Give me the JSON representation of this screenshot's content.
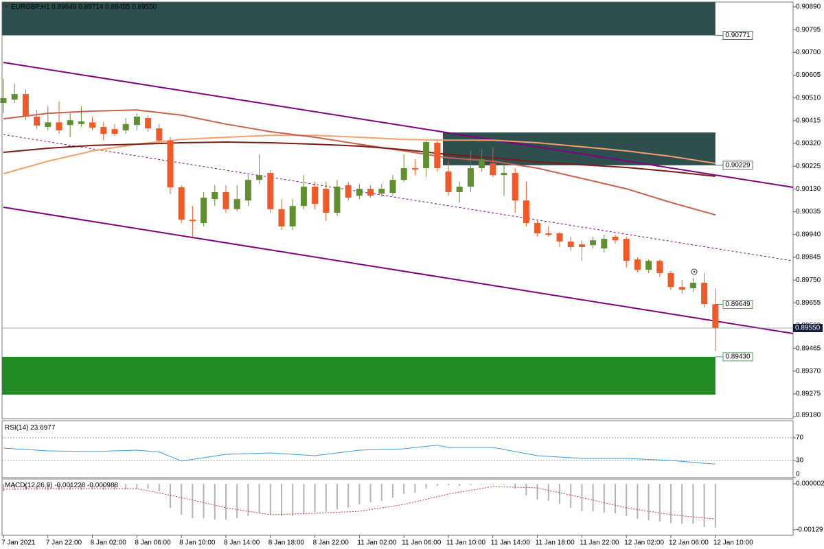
{
  "chart_data": [
    {
      "type": "candlestick",
      "header": {
        "symbol": "EURGBP,H1",
        "quote": "0.89649 0.89714 0.89455 0.89550"
      },
      "categories": [
        "7 Jan 2021",
        null,
        null,
        null,
        "7 Jan 22:00",
        null,
        null,
        null,
        "8 Jan 02:00",
        null,
        null,
        null,
        "8 Jan 06:00",
        null,
        null,
        null,
        "8 Jan 10:00",
        null,
        null,
        null,
        "8 Jan 14:00",
        null,
        null,
        null,
        "8 Jan 18:00",
        null,
        null,
        null,
        "8 Jan 22:00",
        null,
        null,
        null,
        "11 Jan 02:00",
        null,
        null,
        null,
        "11 Jan 06:00",
        null,
        null,
        null,
        "11 Jan 10:00",
        null,
        null,
        null,
        "11 Jan 14:00",
        null,
        null,
        null,
        "11 Jan 18:00",
        null,
        null,
        null,
        "11 Jan 22:00",
        null,
        null,
        null,
        "12 Jan 02:00",
        null,
        null,
        null,
        "12 Jan 06:00",
        null,
        null,
        null,
        "12 Jan 10:00"
      ],
      "open": [
        0.90489,
        0.90503,
        0.90526,
        0.90432,
        0.90389,
        0.90408,
        0.90397,
        0.90401,
        0.90408,
        0.90389,
        0.9038,
        0.90375,
        0.90397,
        0.90426,
        0.90383,
        0.90332,
        0.90137,
        0.90002,
        0.89988,
        0.90088,
        0.90117,
        0.90046,
        0.90082,
        0.90168,
        0.90197,
        0.90046,
        0.89974,
        0.90059,
        0.9014,
        0.90131,
        0.90031,
        0.90146,
        0.90102,
        0.90131,
        0.90111,
        0.90114,
        0.90168,
        0.90217,
        0.90217,
        0.90323,
        0.90203,
        0.90117,
        0.9014,
        0.90217,
        0.90237,
        0.90188,
        0.90197,
        0.90082,
        0.89988,
        0.89945,
        0.89945,
        0.89911,
        0.89899,
        0.89896,
        0.89882,
        0.89931,
        0.89922,
        0.89836,
        0.89793,
        0.8983,
        0.89779,
        0.89721,
        0.89716,
        0.89739,
        0.89649
      ],
      "high": [
        0.90589,
        0.90569,
        0.90546,
        0.9046,
        0.90475,
        0.90495,
        0.90446,
        0.90475,
        0.90432,
        0.90408,
        0.90401,
        0.90426,
        0.90446,
        0.90438,
        0.90401,
        0.90346,
        0.90146,
        0.90059,
        0.90117,
        0.90146,
        0.90146,
        0.90146,
        0.90188,
        0.90274,
        0.90208,
        0.90088,
        0.90088,
        0.90188,
        0.9016,
        0.9016,
        0.90168,
        0.9016,
        0.90151,
        0.90146,
        0.90151,
        0.90188,
        0.90274,
        0.90254,
        0.90332,
        0.90332,
        0.90246,
        0.9016,
        0.90289,
        0.90294,
        0.90303,
        0.90237,
        0.90217,
        0.9016,
        0.90002,
        0.89974,
        0.89951,
        0.89931,
        0.89916,
        0.89931,
        0.89939,
        0.89939,
        0.89931,
        0.89845,
        0.89836,
        0.89836,
        0.89788,
        0.8975,
        0.89759,
        0.89779,
        0.89714
      ],
      "low": [
        0.90446,
        0.90489,
        0.90417,
        0.9038,
        0.90375,
        0.9036,
        0.90346,
        0.90389,
        0.90375,
        0.90332,
        0.90352,
        0.9036,
        0.90375,
        0.90369,
        0.90317,
        0.90108,
        0.89988,
        0.89931,
        0.89974,
        0.90059,
        0.90031,
        0.90037,
        0.90059,
        0.90151,
        0.90031,
        0.89959,
        0.89959,
        0.90046,
        0.90046,
        0.89996,
        0.90017,
        0.90082,
        0.90088,
        0.90094,
        0.90099,
        0.90102,
        0.9016,
        0.90188,
        0.9018,
        0.90203,
        0.90102,
        0.90074,
        0.90117,
        0.90203,
        0.9018,
        0.90102,
        0.90031,
        0.89974,
        0.89931,
        0.89931,
        0.89888,
        0.89873,
        0.8983,
        0.89882,
        0.89865,
        0.89902,
        0.89802,
        0.89782,
        0.89779,
        0.89763,
        0.8971,
        0.89693,
        0.89701,
        0.89636,
        0.89455
      ],
      "close": [
        0.90509,
        0.90526,
        0.90432,
        0.90395,
        0.90408,
        0.90375,
        0.90417,
        0.90412,
        0.90386,
        0.9036,
        0.9036,
        0.90401,
        0.90432,
        0.90383,
        0.90332,
        0.90137,
        0.90002,
        0.89996,
        0.90094,
        0.90117,
        0.90046,
        0.90088,
        0.90168,
        0.90188,
        0.90046,
        0.89974,
        0.90059,
        0.9014,
        0.90068,
        0.90031,
        0.9014,
        0.90094,
        0.90131,
        0.90102,
        0.90131,
        0.90168,
        0.90217,
        0.90211,
        0.90326,
        0.90217,
        0.90117,
        0.9014,
        0.90217,
        0.90254,
        0.90188,
        0.90197,
        0.90082,
        0.89988,
        0.89945,
        0.89939,
        0.89911,
        0.89888,
        0.89888,
        0.89916,
        0.89922,
        0.89916,
        0.8983,
        0.89793,
        0.8983,
        0.89779,
        0.89721,
        0.8971,
        0.89739,
        0.8965,
        0.8955
      ],
      "up_color": "#5f8f2f",
      "down_color": "#f05a28",
      "ylim": [
        0.89172,
        0.9091
      ],
      "yticks": [
        {
          "value": 0.9089,
          "label": "0.90890"
        },
        0.90795,
        {
          "value": 0.907,
          "label": "0.90700"
        },
        0.90605,
        {
          "value": 0.9051,
          "label": "0.90510"
        },
        0.90415,
        {
          "value": 0.9032,
          "label": "0.90320"
        },
        0.90225,
        {
          "value": 0.9013,
          "label": "0.90130"
        },
        0.90035,
        {
          "value": 0.8994,
          "label": "0.89940"
        },
        0.89845,
        {
          "value": 0.8975,
          "label": "0.89750"
        },
        0.89655,
        {
          "value": 0.8956,
          "label": "0.89560"
        },
        0.89465,
        {
          "value": 0.8937,
          "label": "0.89370"
        },
        0.89275,
        {
          "value": 0.8918,
          "label": "0.89180"
        }
      ],
      "zones": [
        {
          "low": 0.90771,
          "high": 0.9091,
          "start": 0,
          "end": 64,
          "color": "#2f4f4f"
        },
        {
          "low": 0.90229,
          "high": 0.90366,
          "start": 40,
          "end": 64,
          "color": "#2f4f4f"
        },
        {
          "low": 0.89272,
          "high": 0.8943,
          "start": 0,
          "end": 64,
          "color": "#228b22"
        }
      ],
      "levels": [
        {
          "value": 0.90771,
          "color": "#2f4f4f"
        },
        {
          "value": 0.90229,
          "color": "#2f4f4f"
        },
        {
          "value": 0.89649,
          "color": "#228b22"
        },
        {
          "value": 0.8943,
          "label": "0.89430",
          "color": "#228b22"
        }
      ],
      "trendlines": [
        {
          "color": "#800080",
          "dashed": false,
          "x": [
            0,
            71
          ],
          "values": [
            0.90658,
            0.90137
          ]
        },
        {
          "color": "#800080",
          "dashed": false,
          "x": [
            0,
            71
          ],
          "values": [
            0.90054,
            0.89527
          ]
        },
        {
          "color": "#800080",
          "dashed": true,
          "x": [
            0,
            71
          ],
          "values": [
            0.90357,
            0.8983
          ]
        }
      ],
      "overlays": [
        {
          "color": "#f4a06a",
          "x": [
            0,
            4,
            8,
            12,
            16,
            20,
            24,
            28,
            32,
            36,
            40,
            44,
            48,
            52,
            56,
            60,
            64
          ],
          "values": [
            0.90194,
            0.90246,
            0.90289,
            0.90317,
            0.90337,
            0.90346,
            0.90354,
            0.90354,
            0.90346,
            0.90337,
            0.90334,
            0.90334,
            0.90323,
            0.90306,
            0.90289,
            0.90266,
            0.90237
          ]
        },
        {
          "color": "#c8614e",
          "x": [
            0,
            4,
            8,
            12,
            16,
            20,
            24,
            28,
            32,
            36,
            40,
            44,
            48,
            52,
            56,
            60,
            64
          ],
          "values": [
            0.90423,
            0.90446,
            0.90455,
            0.9046,
            0.90438,
            0.90401,
            0.90369,
            0.90346,
            0.90317,
            0.90289,
            0.9026,
            0.90246,
            0.90217,
            0.90174,
            0.90131,
            0.90074,
            0.90022
          ]
        },
        {
          "color": "#7a1a14",
          "x": [
            0,
            4,
            8,
            12,
            16,
            20,
            24,
            28,
            32,
            36,
            40,
            44,
            48,
            52,
            56,
            60,
            64
          ],
          "values": [
            0.90283,
            0.903,
            0.90312,
            0.90317,
            0.90323,
            0.90326,
            0.90323,
            0.90317,
            0.90309,
            0.90294,
            0.90274,
            0.9026,
            0.90243,
            0.90231,
            0.9022,
            0.90203,
            0.90183
          ]
        }
      ],
      "last_price": {
        "value": 0.8955,
        "label": "0.89550"
      }
    },
    {
      "type": "line",
      "title": "RSI(14)",
      "color": "#3a9ad9",
      "x": [
        0,
        4,
        8,
        12,
        14,
        16,
        20,
        24,
        28,
        32,
        36,
        39,
        40,
        44,
        48,
        52,
        56,
        60,
        64
      ],
      "values": [
        51.8,
        47.0,
        45.8,
        48.2,
        45.0,
        29.0,
        41.0,
        43.4,
        38.6,
        48.2,
        50.6,
        57.0,
        53.0,
        53.0,
        38.6,
        33.7,
        33.7,
        30.1,
        23.6977
      ],
      "ylim": [
        0,
        100
      ],
      "yticks": [
        70,
        30,
        0
      ],
      "grid": true
    },
    {
      "type": "macd",
      "title": "MACD(12,26,9)",
      "series": [
        {
          "kind": "bar",
          "color": "#b4b4b4",
          "values": [
            -0.00021,
            -0.000172,
            -0.000172,
            -0.000172,
            -0.000191,
            -0.000172,
            -0.000172,
            -0.000172,
            -0.000152,
            -0.000172,
            -0.000152,
            -0.000152,
            -0.000133,
            -0.000133,
            -0.00021,
            -0.000673,
            -0.000866,
            -0.000962,
            -0.000962,
            -0.001001,
            -0.001001,
            -0.000962,
            -0.000904,
            -0.000827,
            -0.000866,
            -0.000904,
            -0.000904,
            -0.000827,
            -0.000788,
            -0.000788,
            -0.000711,
            -0.000673,
            -0.000576,
            -0.000519,
            -0.00048,
            -0.000384,
            -0.000287,
            -0.000249,
            -0.000133,
            -5.6e-05,
            -3.7e-05,
            -5.6e-05,
            -3.7e-05,
            -1.7e-05,
            -1.7e-05,
            -1.7e-05,
            -0.000133,
            -0.000326,
            -0.000441,
            -0.00048,
            -0.000557,
            -0.000673,
            -0.000769,
            -0.000769,
            -0.000808,
            -0.000827,
            -0.000904,
            -0.000981,
            -0.00102,
            -0.001058,
            -0.001097,
            -0.001116,
            -0.001116,
            -0.001213,
            -0.001228
          ]
        },
        {
          "kind": "line",
          "color": "#d03030",
          "dashed": true,
          "x": [
            0,
            4,
            8,
            12,
            16,
            20,
            24,
            28,
            32,
            36,
            40,
            44,
            48,
            52,
            56,
            60,
            64
          ],
          "values": [
            -0.000152,
            -0.000133,
            -0.000133,
            -0.000133,
            -0.000384,
            -0.000673,
            -0.000866,
            -0.000827,
            -0.000769,
            -0.000576,
            -0.000287,
            -7.5e-05,
            -0.000114,
            -0.000384,
            -0.000673,
            -0.000866,
            -0.000988
          ]
        }
      ],
      "ylim": [
        -0.001444,
        0.000137
      ],
      "yticks": [
        2e-06,
        -0.00129
      ]
    }
  ]
}
